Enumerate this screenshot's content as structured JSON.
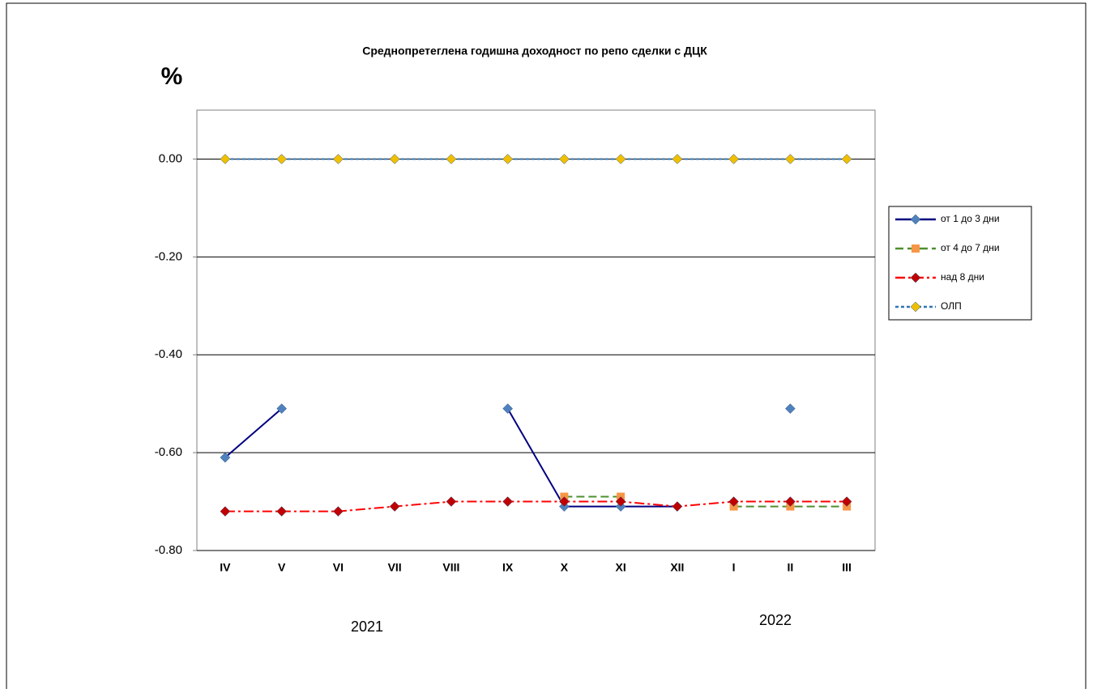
{
  "chart_data": {
    "type": "line",
    "title": "Среднопретеглена годишна доходност по репо сделки с ДЦК",
    "y_label": "%",
    "categories": [
      "IV",
      "V",
      "VI",
      "VII",
      "VIII",
      "IX",
      "X",
      "XI",
      "XII",
      "I",
      "II",
      "III"
    ],
    "annotations": [
      "2021",
      "2022"
    ],
    "ylim": [
      -0.8,
      0.1
    ],
    "yticks": [
      {
        "value": -0.8,
        "label": "-0.80"
      },
      {
        "value": -0.6,
        "label": "-0.60"
      },
      {
        "value": -0.4,
        "label": "-0.40"
      },
      {
        "value": -0.2,
        "label": "-0.20"
      },
      {
        "value": 0,
        "label": "0.00"
      }
    ],
    "grid": true,
    "legend": "right",
    "series": [
      {
        "name": "от 1 до 3 дни",
        "color": "#000080",
        "marker_color": "#4f81bd",
        "marker": "diamond",
        "dash": "",
        "values": [
          -0.61,
          -0.51,
          null,
          null,
          null,
          -0.51,
          -0.71,
          -0.71,
          -0.71,
          null,
          -0.51,
          null
        ]
      },
      {
        "name": "от 4 до 7 дни",
        "color": "#4e8f2e",
        "marker_color": "#f79646",
        "marker": "square",
        "dash": "10 5",
        "values": [
          null,
          null,
          null,
          null,
          null,
          null,
          -0.69,
          -0.69,
          null,
          -0.71,
          -0.71,
          -0.71
        ]
      },
      {
        "name": "над 8 дни",
        "color": "#ff0000",
        "marker_color": "#c00000",
        "marker": "diamond",
        "dash": "12 4 3 4",
        "values": [
          -0.72,
          -0.72,
          -0.72,
          -0.71,
          -0.7,
          -0.7,
          -0.7,
          -0.7,
          -0.71,
          -0.7,
          -0.7,
          -0.7
        ]
      },
      {
        "name": "ОЛП",
        "color": "#2e75b6",
        "marker_color": "#f0c000",
        "marker": "diamond",
        "dash": "4 3",
        "values": [
          0,
          0,
          0,
          0,
          0,
          0,
          0,
          0,
          0,
          0,
          0,
          0
        ]
      }
    ]
  }
}
